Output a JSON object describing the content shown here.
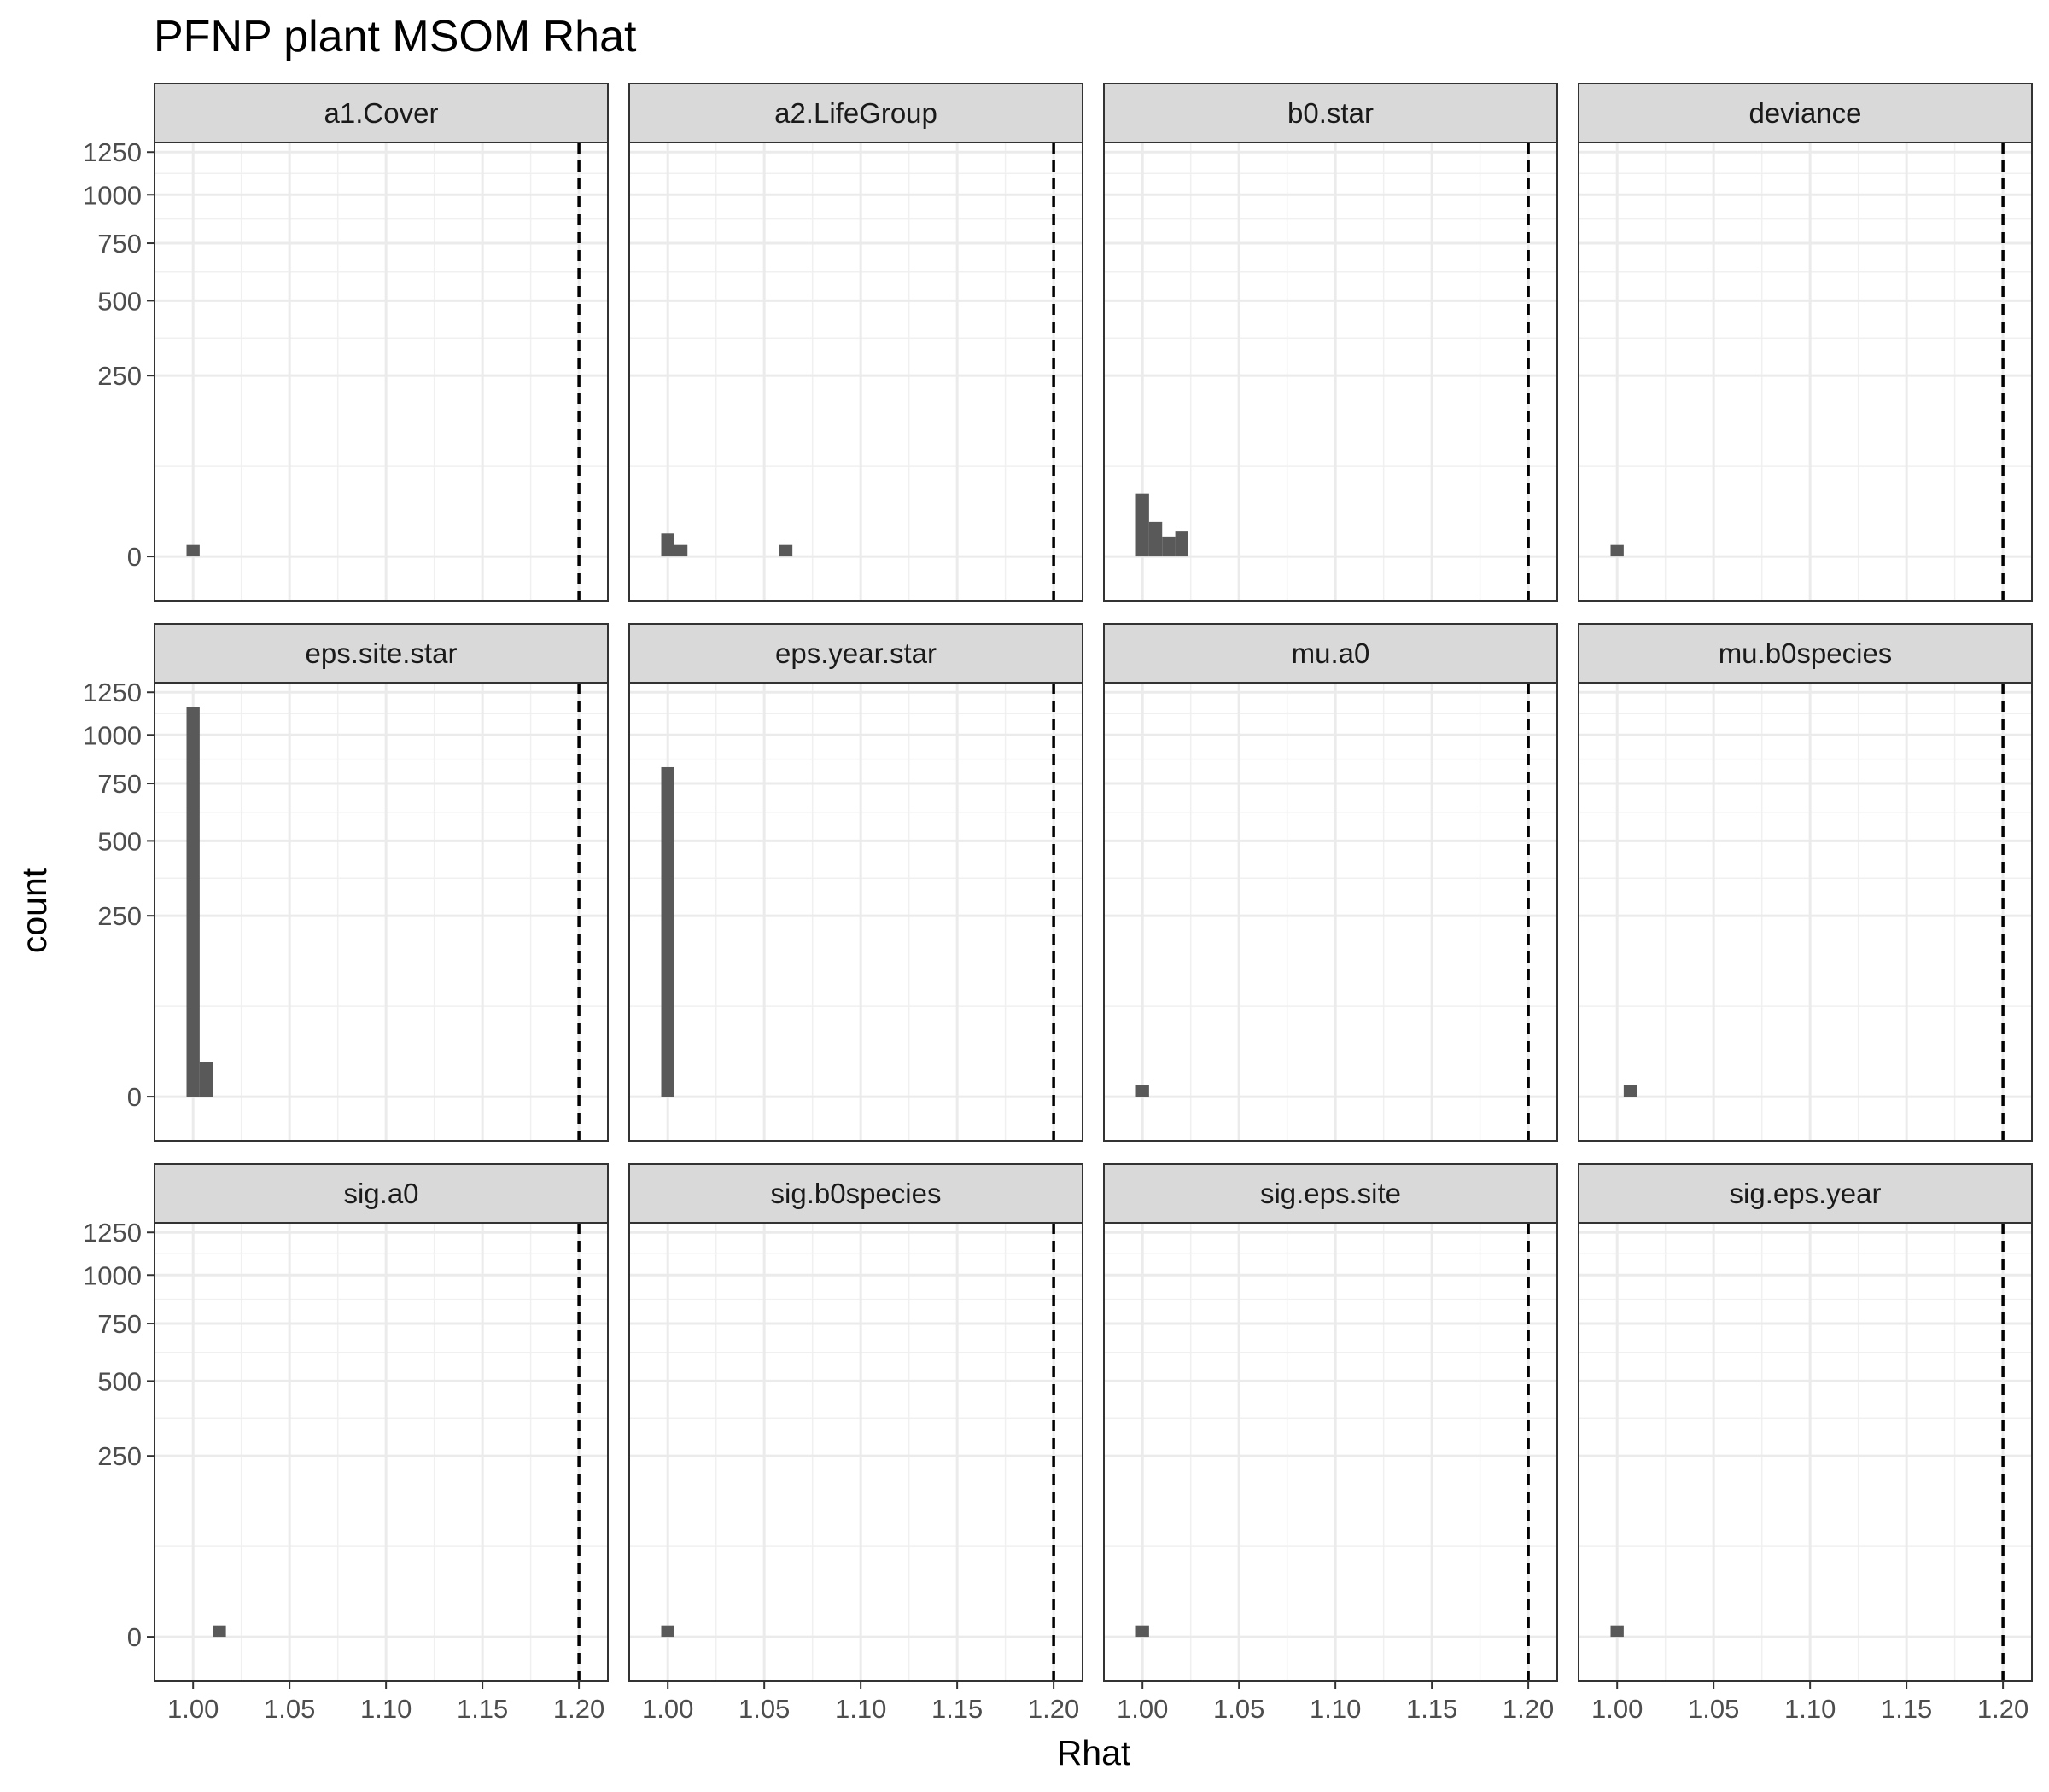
{
  "chart_data": {
    "type": "bar",
    "title": "PFNP plant MSOM Rhat",
    "xlabel": "Rhat",
    "ylabel": "count",
    "xlim": [
      0.98,
      1.215
    ],
    "ylim": [
      -15,
      1310
    ],
    "y_scale": "sqrt",
    "x_ticks": [
      1.0,
      1.05,
      1.1,
      1.15,
      1.2
    ],
    "x_tick_labels": [
      "1.00",
      "1.05",
      "1.10",
      "1.15",
      "1.20"
    ],
    "y_ticks": [
      0,
      250,
      500,
      750,
      1000,
      1250
    ],
    "y_tick_labels": [
      "0",
      "250",
      "500",
      "750",
      "1000",
      "1250"
    ],
    "reference_line": {
      "x": 1.2,
      "style": "dashed",
      "color": "#000000"
    },
    "bin_width": 0.0068,
    "grid": true,
    "bar_color": "#595959",
    "facet_layout": {
      "rows": 3,
      "cols": 4
    },
    "panels": [
      {
        "label": "a1.Cover",
        "bars": [
          {
            "x": 1.0,
            "count": 1
          }
        ]
      },
      {
        "label": "a2.LifeGroup",
        "bars": [
          {
            "x": 1.0,
            "count": 4
          },
          {
            "x": 1.0068,
            "count": 1
          },
          {
            "x": 1.0612,
            "count": 1
          }
        ]
      },
      {
        "label": "b0.star",
        "bars": [
          {
            "x": 1.0,
            "count": 30
          },
          {
            "x": 1.0068,
            "count": 9
          },
          {
            "x": 1.0136,
            "count": 3
          },
          {
            "x": 1.0204,
            "count": 5
          }
        ]
      },
      {
        "label": "deviance",
        "bars": [
          {
            "x": 1.0,
            "count": 1
          }
        ]
      },
      {
        "label": "eps.site.star",
        "bars": [
          {
            "x": 1.0,
            "count": 1160
          },
          {
            "x": 1.0068,
            "count": 9
          }
        ]
      },
      {
        "label": "eps.year.star",
        "bars": [
          {
            "x": 1.0,
            "count": 830
          }
        ]
      },
      {
        "label": "mu.a0",
        "bars": [
          {
            "x": 1.0,
            "count": 1
          }
        ]
      },
      {
        "label": "mu.b0species",
        "bars": [
          {
            "x": 1.0068,
            "count": 1
          }
        ]
      },
      {
        "label": "sig.a0",
        "bars": [
          {
            "x": 1.0136,
            "count": 1
          }
        ]
      },
      {
        "label": "sig.b0species",
        "bars": [
          {
            "x": 1.0,
            "count": 1
          }
        ]
      },
      {
        "label": "sig.eps.site",
        "bars": [
          {
            "x": 1.0,
            "count": 1
          }
        ]
      },
      {
        "label": "sig.eps.year",
        "bars": [
          {
            "x": 1.0,
            "count": 1
          }
        ]
      }
    ]
  }
}
